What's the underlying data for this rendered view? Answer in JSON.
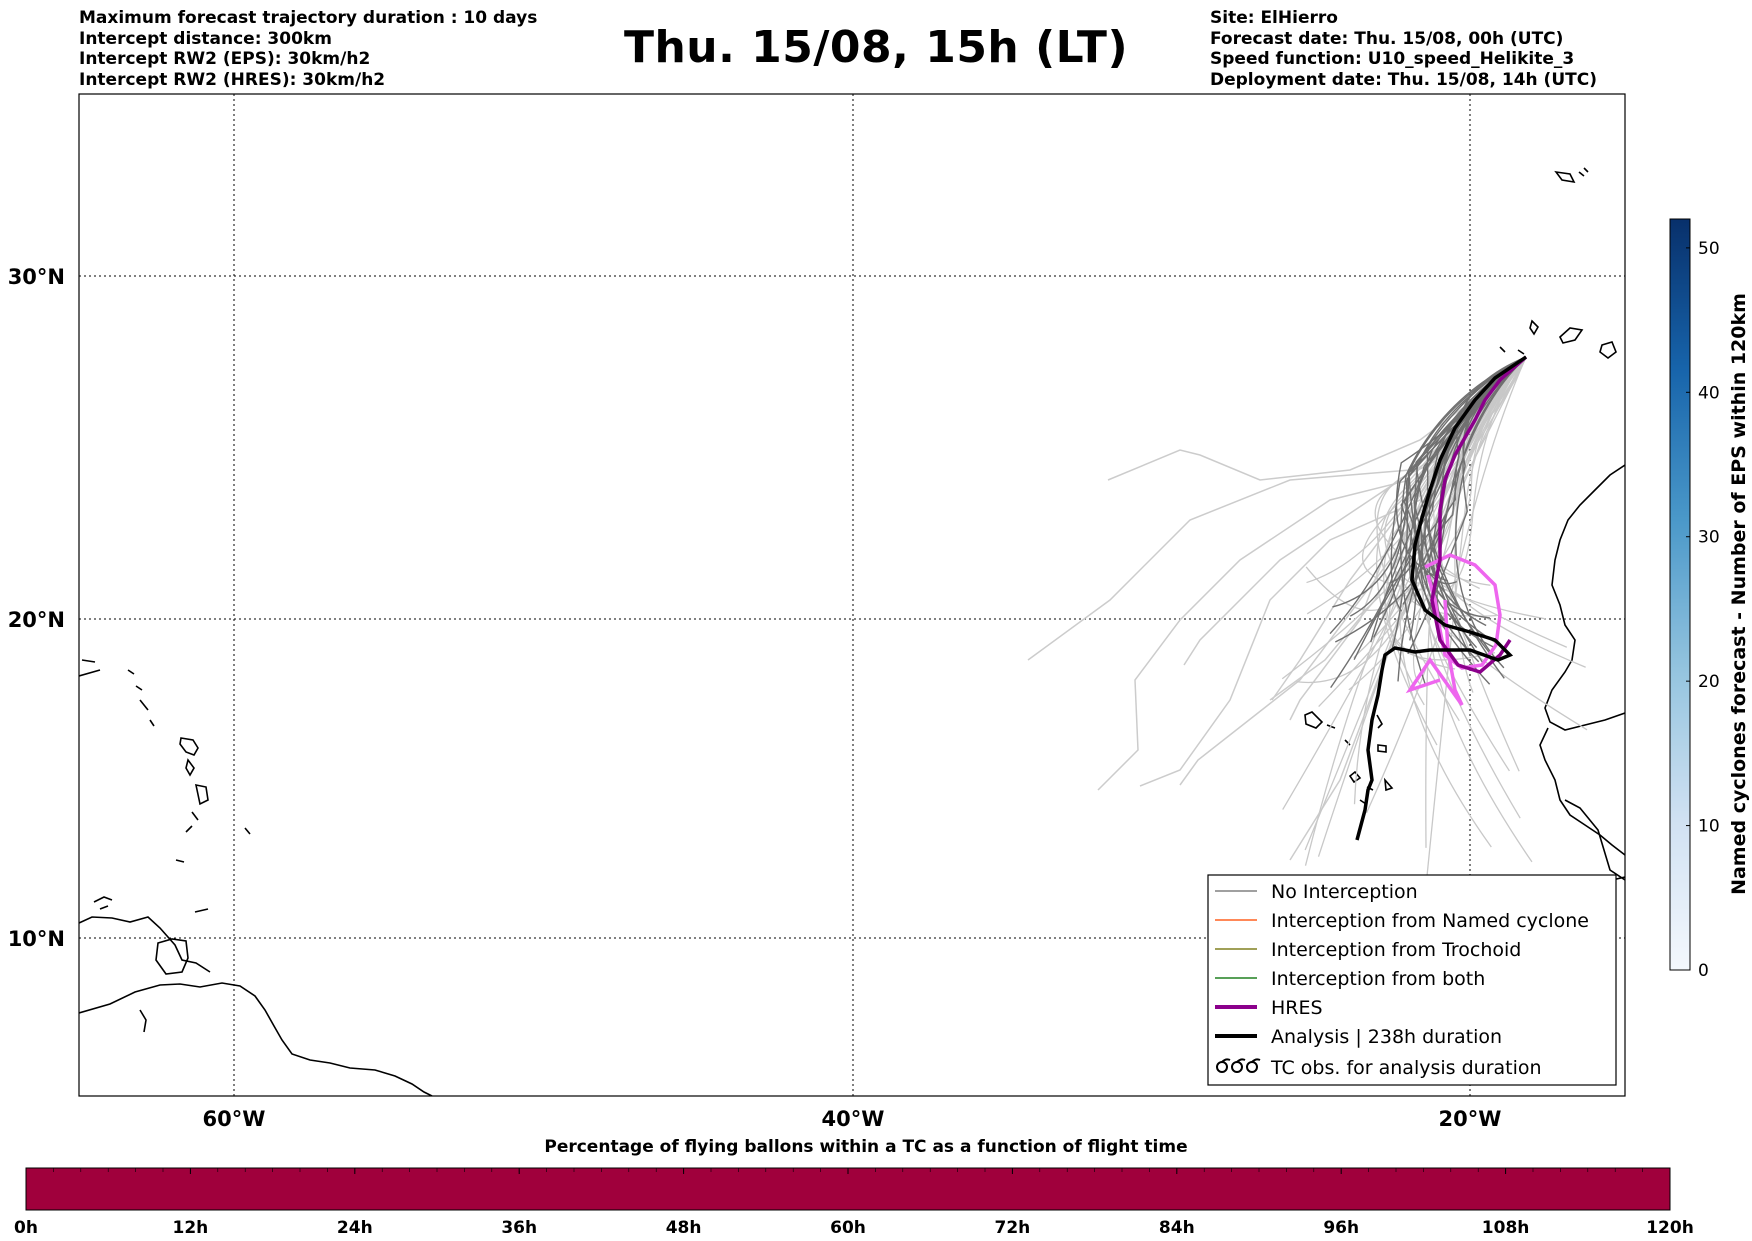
{
  "header_left": [
    "Maximum forecast trajectory duration : 10 days",
    "Intercept distance: 300km",
    "Intercept RW2 (EPS):  30km/h2",
    "Intercept RW2 (HRES): 30km/h2"
  ],
  "title": "Thu. 15/08, 15h (LT)",
  "header_right": [
    "Site: ElHierro",
    "Forecast date: Thu. 15/08, 00h (UTC)",
    "Speed function: U10_speed_Helikite_3",
    "Deployment date: Thu. 15/08, 14h (UTC)"
  ],
  "map": {
    "lon_range": [
      -65,
      15
    ],
    "lat_range": [
      5,
      34.3
    ],
    "lat_labels": [
      "30°N",
      "20°N",
      "10°N"
    ],
    "lon_labels": [
      "60°W",
      "40°W",
      "20°W"
    ],
    "gridlines": true,
    "colors": {
      "no_interception": "#808080",
      "named_cyclone": "#ff6020",
      "trochoid": "#808020",
      "both": "#208020",
      "hres": "#8b008b",
      "analysis": "#000000",
      "faint_tracks": "#cccccc"
    }
  },
  "legend": {
    "placement": "lower-right",
    "items": [
      {
        "label": "No Interception",
        "icon": "gray-line-icon"
      },
      {
        "label": "Interception from Named cyclone",
        "icon": "orange-line-icon"
      },
      {
        "label": "Interception from Trochoid",
        "icon": "olive-line-icon"
      },
      {
        "label": "Interception from both",
        "icon": "green-line-icon"
      },
      {
        "label": "HRES",
        "icon": "purple-line-icon"
      },
      {
        "label": "Analysis | 238h duration",
        "icon": "black-line-icon"
      },
      {
        "label": "TC obs. for analysis duration",
        "icon": "cyclone-symbol-icon"
      }
    ]
  },
  "colorbar_right": {
    "label": "Named cyclones forecast - Number of EPS within 120km",
    "ticks": [
      "0",
      "10",
      "20",
      "30",
      "40",
      "50"
    ],
    "range": [
      0,
      52
    ],
    "color_low": "#e8f0fa",
    "color_high": "#08306b"
  },
  "colorbar_bottom": {
    "title": "Percentage of flying ballons within a TC as a function of flight time",
    "ticks": [
      "0h",
      "12h",
      "24h",
      "36h",
      "48h",
      "60h",
      "72h",
      "84h",
      "96h",
      "108h",
      "120h"
    ],
    "fill_color": "#a0003c"
  }
}
